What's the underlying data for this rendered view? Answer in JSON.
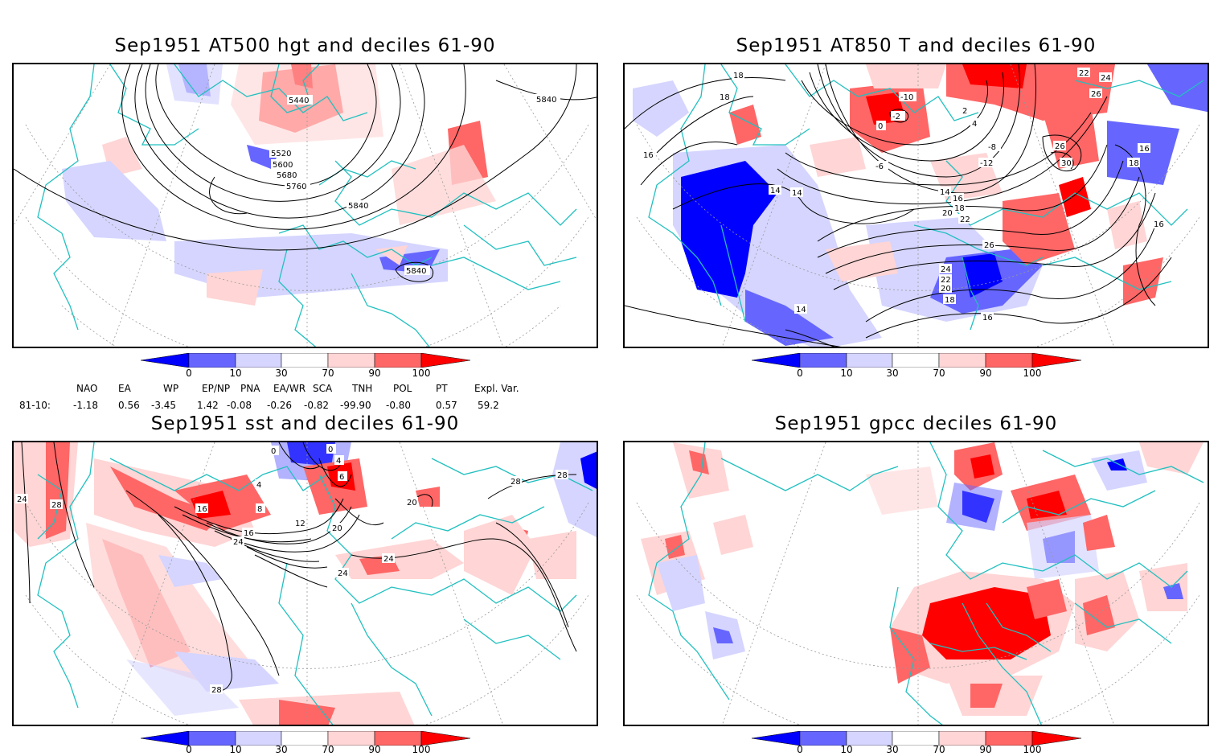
{
  "panels": [
    {
      "title": "Sep1951 AT500 hgt and deciles 61-90",
      "contour_labels": [
        "5440",
        "5520",
        "5600",
        "5680",
        "5760",
        "5840",
        "5840",
        "5840"
      ]
    },
    {
      "title": "Sep1951 AT850 T and deciles 61-90",
      "contour_labels": [
        "18",
        "18",
        "16",
        "14",
        "14",
        "-10",
        "-2",
        "0",
        "2",
        "4",
        "-6",
        "-8",
        "-12",
        "22",
        "24",
        "26",
        "26",
        "30",
        "18",
        "16",
        "14",
        "16",
        "18",
        "20",
        "22",
        "26",
        "24",
        "22",
        "20",
        "18",
        "16",
        "16",
        "14"
      ]
    },
    {
      "title": "Sep1951 sst and deciles 61-90",
      "contour_labels": [
        "24",
        "28",
        "28",
        "28",
        "0",
        "0",
        "4",
        "4",
        "6",
        "8",
        "12",
        "16",
        "16",
        "20",
        "24",
        "24",
        "20",
        "24",
        "28"
      ]
    },
    {
      "title": "Sep1951 gpcc deciles 61-90",
      "contour_labels": []
    }
  ],
  "colorbar": {
    "ticks": [
      "0",
      "10",
      "30",
      "70",
      "90",
      "100"
    ],
    "colors": [
      "#0000ff",
      "#6666ff",
      "#d5d5ff",
      "#ffffff",
      "#ffd5d5",
      "#ff6666",
      "#ff0000"
    ]
  },
  "indices": {
    "row_label": "81-10:",
    "names": [
      "NAO",
      "EA",
      "WP",
      "EP/NP",
      "PNA",
      "EA/WR",
      "SCA",
      "TNH",
      "POL",
      "PT",
      "Expl. Var."
    ],
    "values": [
      "-1.18",
      "0.56",
      "-3.45",
      "1.42",
      "-0.08",
      "-0.26",
      "-0.82",
      "-99.90",
      "-0.80",
      "0.57",
      "59.2"
    ]
  },
  "map_colors": {
    "coast": "#22c0c0",
    "grid": "#999999",
    "contour": "#000000"
  }
}
